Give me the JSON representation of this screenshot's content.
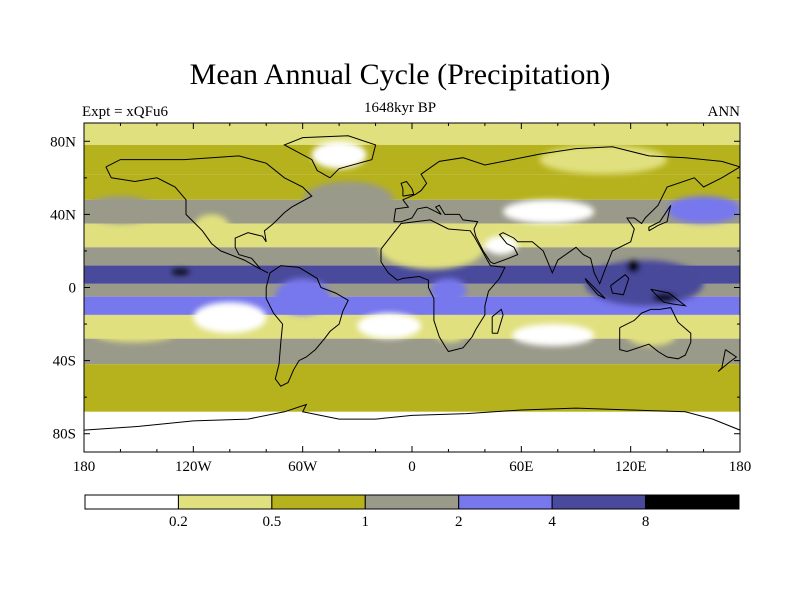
{
  "chart_data": {
    "type": "heatmap",
    "title": "Mean Annual Cycle (Precipitation)",
    "subtitle_left": "Expt = xQFu6",
    "subtitle_center": "1648kyr BP",
    "subtitle_right": "ANN",
    "x_ticks": [
      "180",
      "120W",
      "60W",
      "0",
      "60E",
      "120E",
      "180"
    ],
    "x_tick_values": [
      -180,
      -120,
      -60,
      0,
      60,
      120,
      180
    ],
    "y_ticks": [
      "80N",
      "40N",
      "0",
      "40S",
      "80S"
    ],
    "y_tick_values": [
      80,
      40,
      0,
      -40,
      -80
    ],
    "xlim": [
      -180,
      180
    ],
    "ylim": [
      -90,
      90
    ],
    "colorbar_levels": [
      "0.2",
      "0.5",
      "1",
      "2",
      "4",
      "8"
    ],
    "colorbar_colors": [
      "#ffffff",
      "#e0e07f",
      "#b6b21d",
      "#9a9a8a",
      "#7777ee",
      "#4a4a9c",
      "#000000"
    ],
    "bands": [
      {
        "lat_top": 90,
        "lat_bottom": 78,
        "level": 1
      },
      {
        "lat_top": 78,
        "lat_bottom": 62,
        "level": 2
      },
      {
        "lat_top": 62,
        "lat_bottom": 48,
        "level": 2
      },
      {
        "lat_top": 48,
        "lat_bottom": 35,
        "level": 3
      },
      {
        "lat_top": 35,
        "lat_bottom": 22,
        "level": 1
      },
      {
        "lat_top": 22,
        "lat_bottom": 12,
        "level": 3
      },
      {
        "lat_top": 12,
        "lat_bottom": 2,
        "level": 5
      },
      {
        "lat_top": 2,
        "lat_bottom": -5,
        "level": 3
      },
      {
        "lat_top": -5,
        "lat_bottom": -15,
        "level": 4
      },
      {
        "lat_top": -15,
        "lat_bottom": -28,
        "level": 1
      },
      {
        "lat_top": -28,
        "lat_bottom": -42,
        "level": 3
      },
      {
        "lat_top": -42,
        "lat_bottom": -58,
        "level": 2
      },
      {
        "lat_top": -58,
        "lat_bottom": -68,
        "level": 2
      },
      {
        "lat_top": -68,
        "lat_bottom": -90,
        "level": 0
      }
    ],
    "features": [
      {
        "name": "north-africa-dry",
        "lon": [
          -15,
          35
        ],
        "lat": [
          18,
          30
        ],
        "level": 0
      },
      {
        "name": "arabia-dry",
        "lon": [
          40,
          58
        ],
        "lat": [
          18,
          28
        ],
        "level": 0
      },
      {
        "name": "sahara-yellow",
        "lon": [
          -18,
          40
        ],
        "lat": [
          10,
          34
        ],
        "level": 1
      },
      {
        "name": "east-pacific-dry",
        "lon": [
          -120,
          -80
        ],
        "lat": [
          -25,
          -8
        ],
        "level": 0
      },
      {
        "name": "southern-africa-dry",
        "lon": [
          12,
          30
        ],
        "lat": [
          -30,
          -18
        ],
        "level": 1
      },
      {
        "name": "australia-dry",
        "lon": [
          118,
          145
        ],
        "lat": [
          -32,
          -20
        ],
        "level": 1
      },
      {
        "name": "south-atlantic-dry",
        "lon": [
          -30,
          5
        ],
        "lat": [
          -28,
          -14
        ],
        "level": 0
      },
      {
        "name": "indian-ocean-dry",
        "lon": [
          55,
          100
        ],
        "lat": [
          -32,
          -20
        ],
        "level": 0
      },
      {
        "name": "south-pacific-dry",
        "lon": [
          -175,
          -130
        ],
        "lat": [
          -30,
          -20
        ],
        "level": 1
      },
      {
        "name": "maritime-continent-wet",
        "lon": [
          95,
          160
        ],
        "lat": [
          -10,
          15
        ],
        "level": 5
      },
      {
        "name": "amazon-wet",
        "lon": [
          -75,
          -45
        ],
        "lat": [
          -15,
          5
        ],
        "level": 4
      },
      {
        "name": "congo-wet",
        "lon": [
          10,
          30
        ],
        "lat": [
          -8,
          5
        ],
        "level": 4
      },
      {
        "name": "west-pacific-extreme",
        "lon": [
          -132,
          -122
        ],
        "lat": [
          7,
          10
        ],
        "level": 6
      },
      {
        "name": "new-guinea-extreme",
        "lon": [
          132,
          145
        ],
        "lat": [
          -8,
          -3
        ],
        "level": 6
      },
      {
        "name": "philippines-extreme",
        "lon": [
          118,
          125
        ],
        "lat": [
          8,
          15
        ],
        "level": 6
      },
      {
        "name": "north-atlantic-storm",
        "lon": [
          -60,
          -10
        ],
        "lat": [
          38,
          58
        ],
        "level": 3
      },
      {
        "name": "north-pacific-storm",
        "lon": [
          140,
          180
        ],
        "lat": [
          35,
          50
        ],
        "level": 4
      },
      {
        "name": "north-pacific-storm-w",
        "lon": [
          -180,
          -140
        ],
        "lat": [
          35,
          50
        ],
        "level": 3
      },
      {
        "name": "antarctica",
        "lon": [
          -180,
          180
        ],
        "lat": [
          -90,
          -72
        ],
        "level": 0
      },
      {
        "name": "greenland-dry",
        "lon": [
          -55,
          -25
        ],
        "lat": [
          65,
          80
        ],
        "level": 0
      },
      {
        "name": "siberia-dry",
        "lon": [
          70,
          140
        ],
        "lat": [
          62,
          78
        ],
        "level": 1
      },
      {
        "name": "central-asia-dry",
        "lon": [
          50,
          100
        ],
        "lat": [
          35,
          48
        ],
        "level": 0
      },
      {
        "name": "western-us-dry",
        "lon": [
          -120,
          -100
        ],
        "lat": [
          25,
          40
        ],
        "level": 1
      }
    ]
  }
}
